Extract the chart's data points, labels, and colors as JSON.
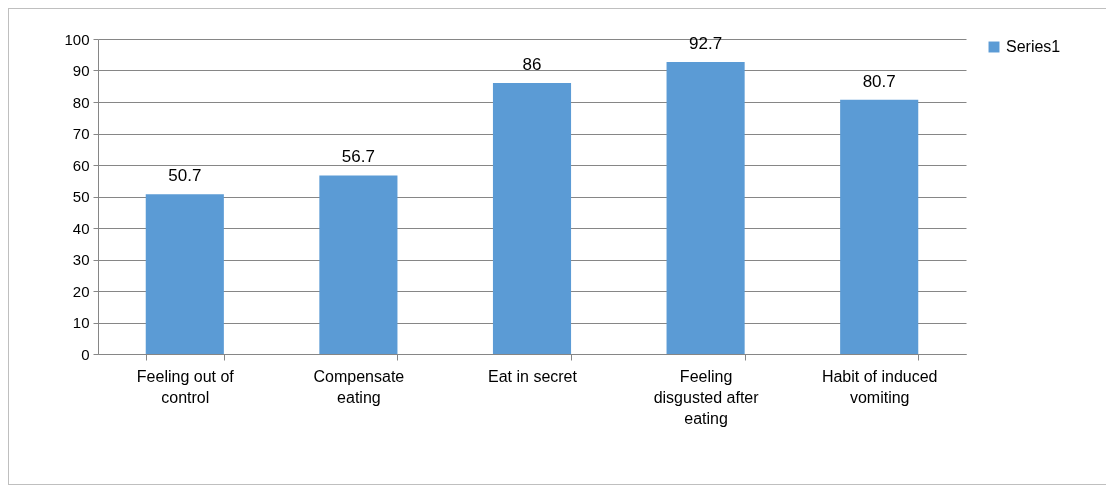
{
  "chart_data": {
    "type": "bar",
    "categories": [
      "Feeling out of control",
      "Compensate eating",
      "Eat in secret",
      "Feeling disgusted after eating",
      "Habit of induced vomiting"
    ],
    "series": [
      {
        "name": "Series1",
        "color": "#5b9bd5",
        "values": [
          50.7,
          56.7,
          86,
          92.7,
          80.7
        ]
      }
    ],
    "ylim": [
      0,
      100
    ],
    "yticks": [
      0,
      10,
      20,
      30,
      40,
      50,
      60,
      70,
      80,
      90,
      100
    ],
    "grid": "y",
    "legend": "right",
    "data_labels": true
  }
}
